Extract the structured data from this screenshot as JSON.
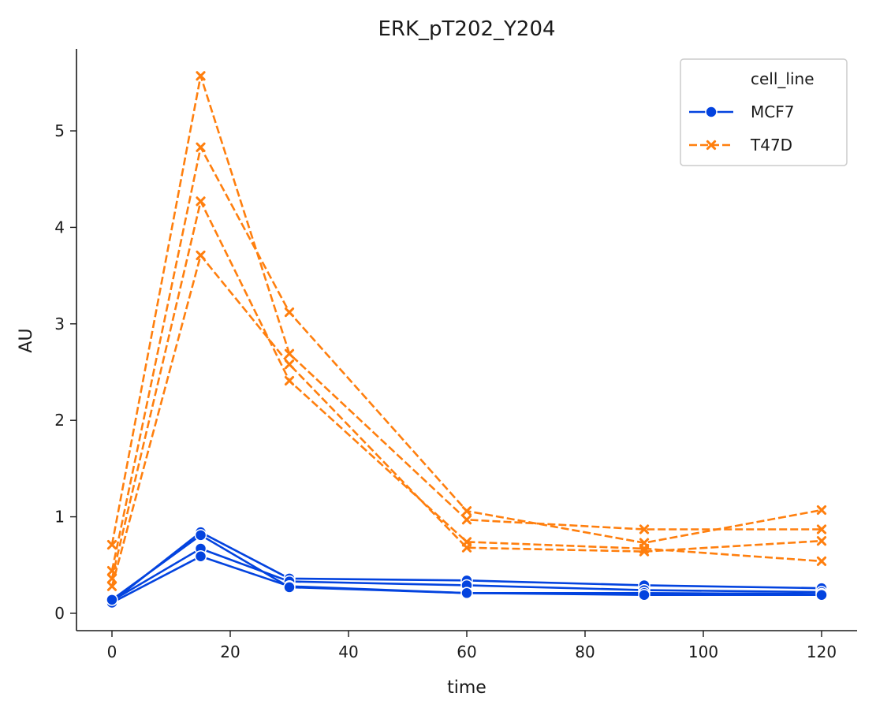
{
  "chart_data": {
    "type": "line",
    "title": "ERK_pT202_Y204",
    "xlabel": "time",
    "ylabel": "AU",
    "xlim": [
      -6,
      126
    ],
    "ylim": [
      -0.18,
      5.85
    ],
    "xticks": [
      0,
      20,
      40,
      60,
      80,
      100,
      120
    ],
    "yticks": [
      0,
      1,
      2,
      3,
      4,
      5
    ],
    "grid": false,
    "legend": {
      "title": "cell_line",
      "placement": "top-right",
      "entries": [
        {
          "label": "MCF7",
          "color": "#0343df",
          "marker": "circle",
          "dash": "solid"
        },
        {
          "label": "T47D",
          "color": "#ff7f0e",
          "marker": "x",
          "dash": "dashed"
        }
      ]
    },
    "x": [
      0,
      15,
      30,
      60,
      90,
      120
    ],
    "series": [
      {
        "group": "MCF7",
        "values": [
          0.12,
          0.84,
          0.36,
          0.34,
          0.29,
          0.26
        ]
      },
      {
        "group": "MCF7",
        "values": [
          0.13,
          0.67,
          0.33,
          0.29,
          0.24,
          0.22
        ]
      },
      {
        "group": "MCF7",
        "values": [
          0.11,
          0.59,
          0.28,
          0.21,
          0.21,
          0.2
        ]
      },
      {
        "group": "MCF7",
        "values": [
          0.14,
          0.81,
          0.27,
          0.21,
          0.19,
          0.19
        ]
      },
      {
        "group": "T47D",
        "values": [
          0.71,
          5.57,
          2.69,
          0.97,
          0.87,
          0.87
        ]
      },
      {
        "group": "T47D",
        "values": [
          0.44,
          4.83,
          3.12,
          1.06,
          0.73,
          1.07
        ]
      },
      {
        "group": "T47D",
        "values": [
          0.36,
          4.27,
          2.41,
          0.74,
          0.67,
          0.54
        ]
      },
      {
        "group": "T47D",
        "values": [
          0.28,
          3.71,
          2.58,
          0.68,
          0.64,
          0.75
        ]
      }
    ]
  }
}
